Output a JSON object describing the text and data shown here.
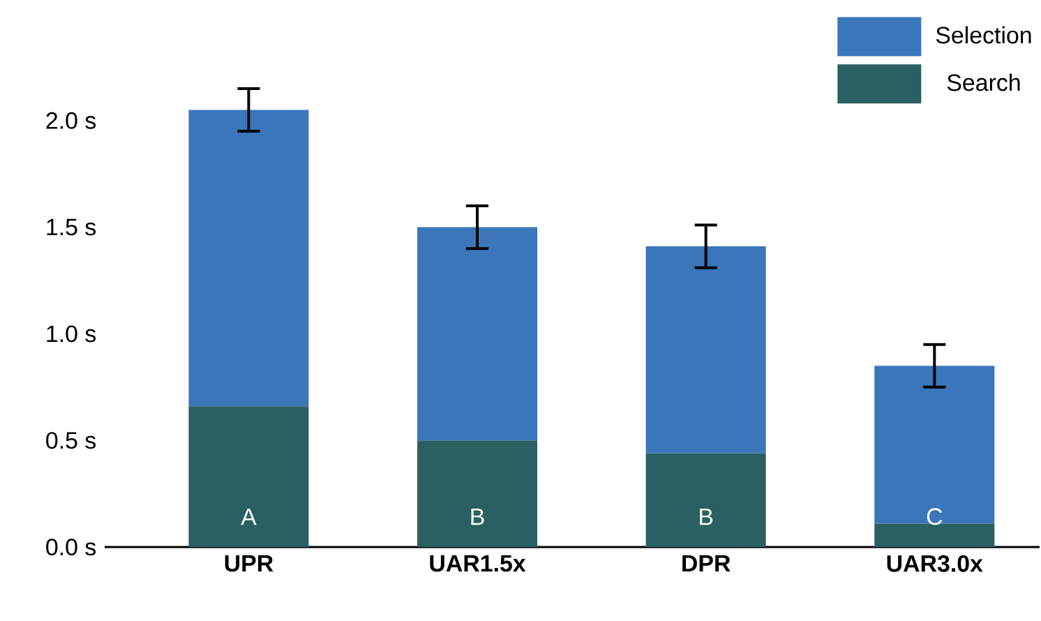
{
  "chart_data": {
    "type": "bar",
    "stacked": true,
    "categories": [
      "UPR",
      "UAR1.5x",
      "DPR",
      "UAR3.0x"
    ],
    "series": [
      {
        "name": "Search",
        "color": "#2a6062",
        "values": [
          0.66,
          0.5,
          0.44,
          0.11
        ]
      },
      {
        "name": "Selection",
        "color": "#3a76b9",
        "values": [
          1.39,
          1.0,
          0.97,
          0.74
        ],
        "errors": [
          0.1,
          0.1,
          0.1,
          0.1
        ]
      }
    ],
    "ylim": [
      0,
      2.5
    ],
    "yticks": [
      {
        "value": 0,
        "label": "0.0 s"
      },
      {
        "value": 0.5,
        "label": "0.5 s"
      },
      {
        "value": 1,
        "label": "1.0 s"
      },
      {
        "value": 1.5,
        "label": "1.5 s"
      },
      {
        "value": 2,
        "label": "2.0 s"
      }
    ],
    "grid": false,
    "legend": "top right",
    "annotations": [
      "A",
      "B",
      "B",
      "C"
    ]
  }
}
